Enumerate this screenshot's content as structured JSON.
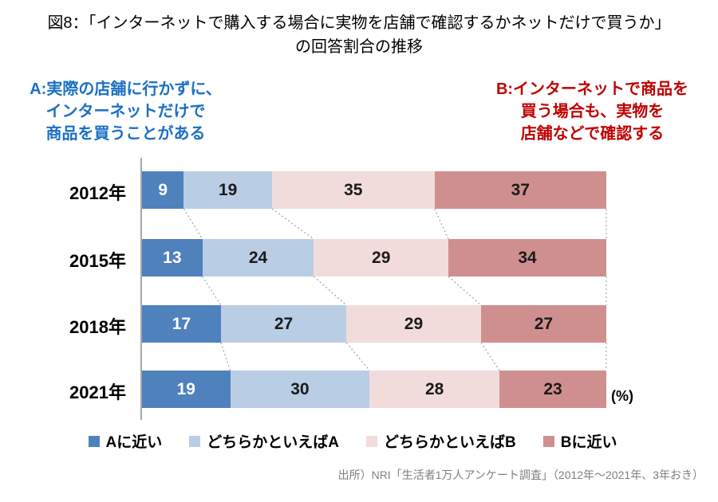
{
  "header": {
    "title_line1": "図8：「インターネットで購入する場合に実物を店舗で確認するかネットだけで買うか」",
    "title_line2": "の回答割合の推移"
  },
  "annotations": {
    "a": {
      "text": "A:実際の店舗に行かずに、\nインターネットだけで\n商品を買うことがある",
      "color": "#1b6fc4"
    },
    "b": {
      "text": "B:インターネットで商品を\n買う場合も、実物を\n店舗などで確認する",
      "color": "#c00000"
    }
  },
  "chart_data": {
    "type": "bar",
    "orientation": "horizontal-stacked",
    "title": "図8：「インターネットで購入する場合に実物を店舗で確認するかネットだけで買うか」の回答割合の推移",
    "categories": [
      "2012年",
      "2015年",
      "2018年",
      "2021年"
    ],
    "series": [
      {
        "name": "Aに近い",
        "color": "#4f81bd",
        "text_color": "#ffffff",
        "values": [
          9,
          13,
          17,
          19
        ]
      },
      {
        "name": "どちらかといえばA",
        "color": "#b9cde5",
        "text_color": "#1a1a1a",
        "values": [
          19,
          24,
          27,
          30
        ]
      },
      {
        "name": "どちらかといえばB",
        "color": "#f2dcdb",
        "text_color": "#1a1a1a",
        "values": [
          35,
          29,
          29,
          28
        ]
      },
      {
        "name": "Bに近い",
        "color": "#d08f8f",
        "text_color": "#1a1a1a",
        "values": [
          37,
          34,
          27,
          23
        ]
      }
    ],
    "unit_label": "(%)",
    "xlim": [
      0,
      100
    ],
    "grid": false,
    "legend_position": "bottom",
    "axis_color": "#a6a6a6",
    "connector_color": "#909090"
  },
  "footer": {
    "source": "出所）NRI「生活者1万人アンケート調査」（2012年～2021年、3年おき）"
  }
}
